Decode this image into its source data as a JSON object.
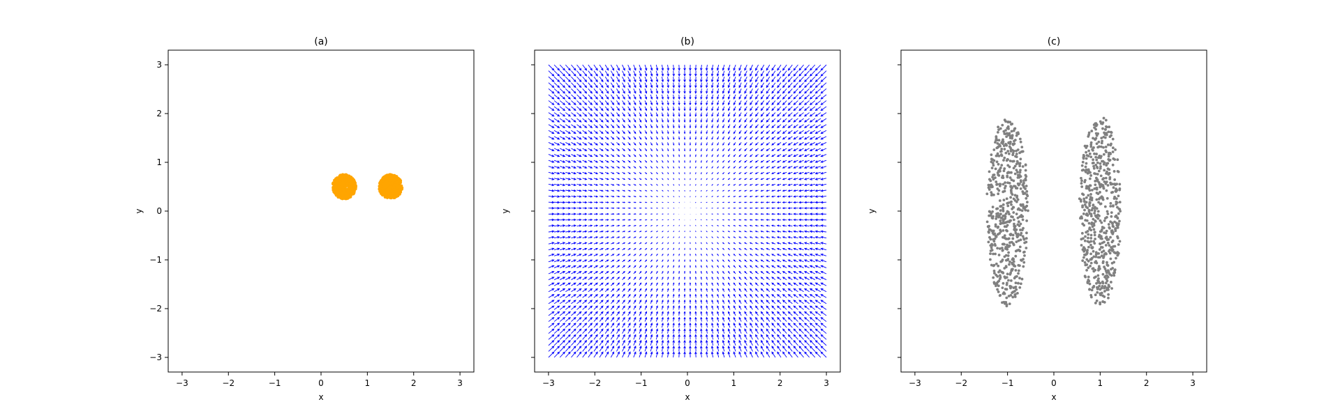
{
  "chart_data": [
    {
      "panel": "a",
      "type": "scatter",
      "title": "(a)",
      "xlabel": "x",
      "ylabel": "y",
      "xlim": [
        -3.3,
        3.3
      ],
      "ylim": [
        -3.3,
        3.3
      ],
      "xticks": [
        -3,
        -2,
        -1,
        0,
        1,
        2,
        3
      ],
      "yticks": [
        -3,
        -2,
        -1,
        0,
        1,
        2,
        3
      ],
      "ytick_labels_visible": true,
      "grid": false,
      "series": [
        {
          "color": "#ffa500",
          "shape": "disk",
          "center": [
            0.5,
            0.5
          ],
          "radius": 0.25,
          "count": 600
        },
        {
          "color": "#ffa500",
          "shape": "disk",
          "center": [
            1.5,
            0.5
          ],
          "radius": 0.25,
          "count": 600
        }
      ]
    },
    {
      "panel": "b",
      "type": "quiver",
      "title": "(b)",
      "xlabel": "x",
      "ylabel": "y",
      "xlim": [
        -3.3,
        3.3
      ],
      "ylim": [
        -3.3,
        3.3
      ],
      "xticks": [
        -3,
        -2,
        -1,
        0,
        1,
        2,
        3
      ],
      "yticks": [
        -3,
        -2,
        -1,
        0,
        1,
        2,
        3
      ],
      "ytick_labels_visible": false,
      "grid": false,
      "field": {
        "x_range": [
          -3,
          3
        ],
        "y_range": [
          -3,
          3
        ],
        "n": 50,
        "color": "#0000ff",
        "direction": "toward-origin"
      }
    },
    {
      "panel": "c",
      "type": "scatter",
      "title": "(c)",
      "xlabel": "x",
      "ylabel": "y",
      "xlim": [
        -3.3,
        3.3
      ],
      "ylim": [
        -3.3,
        3.3
      ],
      "xticks": [
        -3,
        -2,
        -1,
        0,
        1,
        2,
        3
      ],
      "yticks": [
        -3,
        -2,
        -1,
        0,
        1,
        2,
        3
      ],
      "ytick_labels_visible": false,
      "grid": false,
      "series": [
        {
          "color": "#808080",
          "shape": "ellipse",
          "center": [
            -1.0,
            0.0
          ],
          "semi_axes": [
            0.45,
            1.95
          ],
          "count": 600
        },
        {
          "color": "#808080",
          "shape": "ellipse",
          "center": [
            1.0,
            0.0
          ],
          "semi_axes": [
            0.45,
            1.95
          ],
          "count": 600
        }
      ]
    }
  ]
}
